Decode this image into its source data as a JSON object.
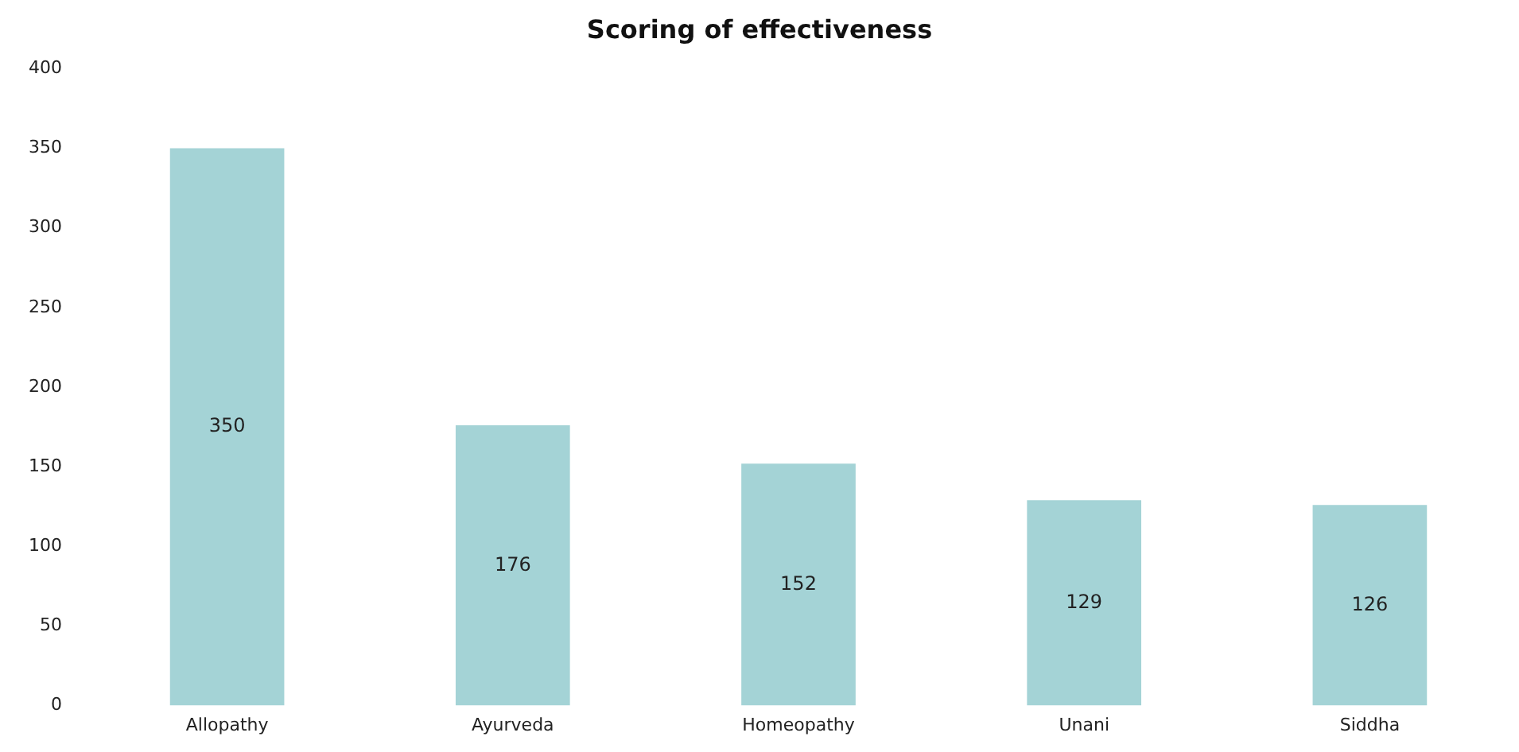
{
  "chart_data": {
    "type": "bar",
    "title": "Scoring of effectiveness",
    "categories": [
      "Allopathy",
      "Ayurveda",
      "Homeopathy",
      "Unani",
      "Siddha"
    ],
    "values": [
      350,
      176,
      152,
      129,
      126
    ],
    "color": "#a4d3d6",
    "ylim": [
      0,
      400
    ],
    "yticks": [
      0,
      50,
      100,
      150,
      200,
      250,
      300,
      350,
      400
    ],
    "grid": false,
    "legend": false,
    "data_labels": true
  }
}
